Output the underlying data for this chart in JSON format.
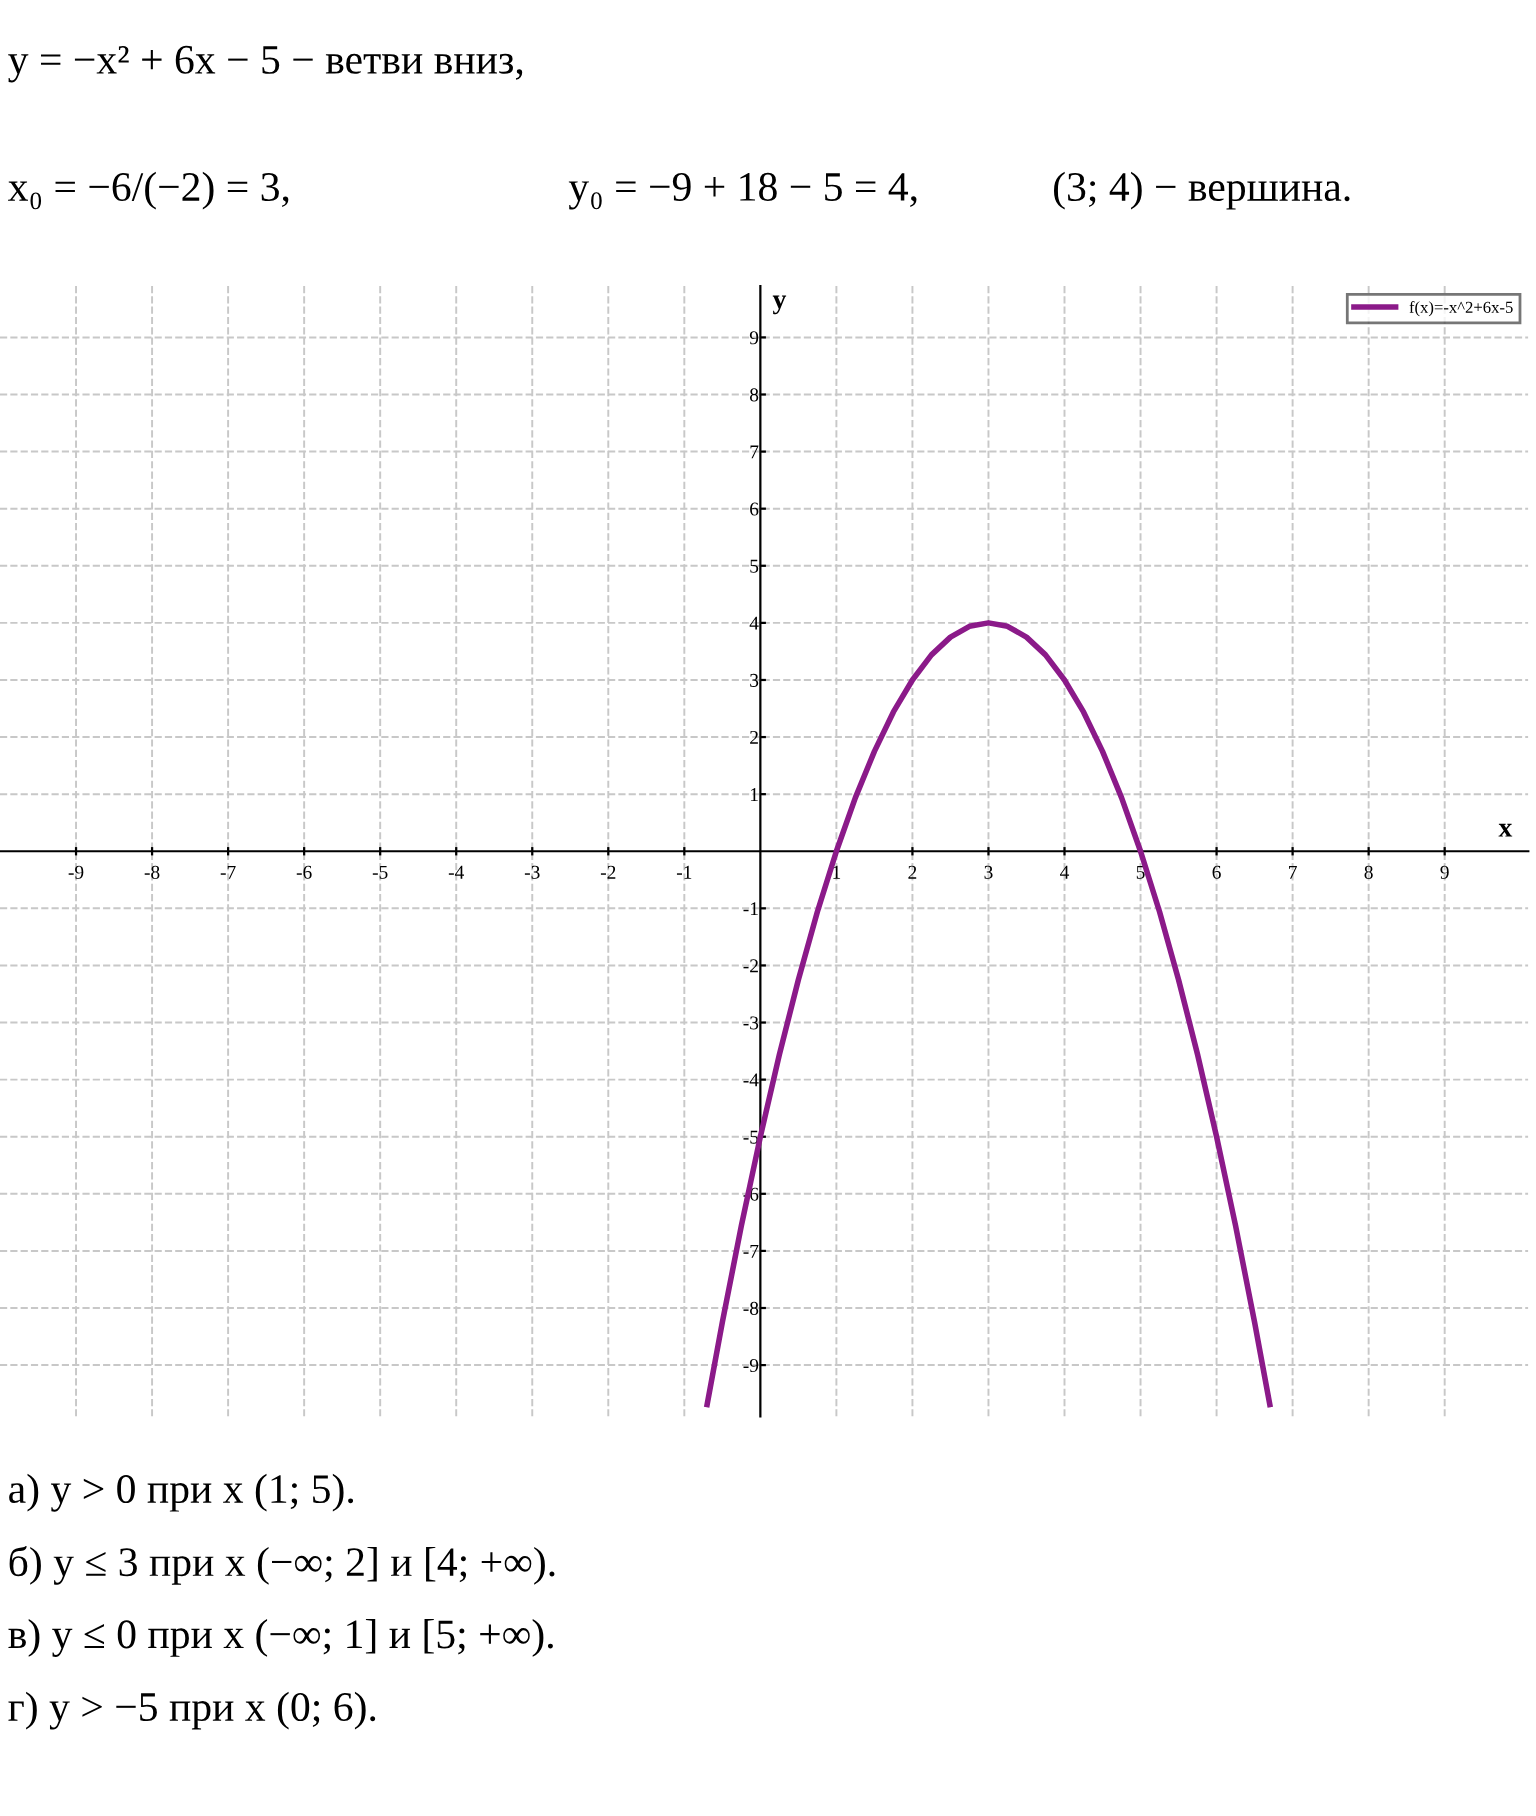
{
  "chart_data": {
    "type": "line",
    "xlabel": "x",
    "ylabel": "y",
    "x": [
      -0.7,
      -0.5,
      -0.25,
      0,
      0.25,
      0.5,
      0.75,
      1,
      1.25,
      1.5,
      1.75,
      2,
      2.25,
      2.5,
      2.75,
      3,
      3.25,
      3.5,
      3.75,
      4,
      4.25,
      4.5,
      4.75,
      5,
      5.25,
      5.5,
      5.75,
      6,
      6.25,
      6.5,
      6.7
    ],
    "series": [
      {
        "name": "f(x)=-x^2+6x-5",
        "color": "#8b1a89",
        "values": [
          -9.69,
          -8.25,
          -6.56,
          -5,
          -3.56,
          -2.25,
          -1.06,
          0,
          0.94,
          1.75,
          2.44,
          3,
          3.44,
          3.75,
          3.94,
          4,
          3.94,
          3.75,
          3.44,
          3,
          2.44,
          1.75,
          0.94,
          0,
          -1.06,
          -2.25,
          -3.56,
          -5,
          -6.56,
          -8.25,
          -9.69
        ]
      }
    ],
    "xlim": [
      -10,
      10.1
    ],
    "ylim": [
      -9.9,
      9.9
    ],
    "xticks": [
      -9,
      -8,
      -7,
      -6,
      -5,
      -4,
      -3,
      -2,
      -1,
      1,
      2,
      3,
      4,
      5,
      6,
      7,
      8,
      9
    ],
    "yticks": [
      -9,
      -8,
      -7,
      -6,
      -5,
      -4,
      -3,
      -2,
      -1,
      1,
      2,
      3,
      4,
      5,
      6,
      7,
      8,
      9
    ],
    "grid": true,
    "legend": "top right",
    "marker": "none",
    "line_style": "solid",
    "annotations": [
      "y = −x² + 6x − 5 − ветви вниз,",
      "x₀ = −6/(−2) = 3,",
      "y₀ = −9 + 18 − 5 = 4,",
      "(3; 4) − вершина.",
      "а) y > 0 при x (1; 5).",
      "б) y ≤ 3 при x (−∞; 2] и [4; +∞).",
      "в) y ≤ 0 при x (−∞; 1] и [5; +∞).",
      "г) y > −5 при x (0; 6)."
    ]
  }
}
